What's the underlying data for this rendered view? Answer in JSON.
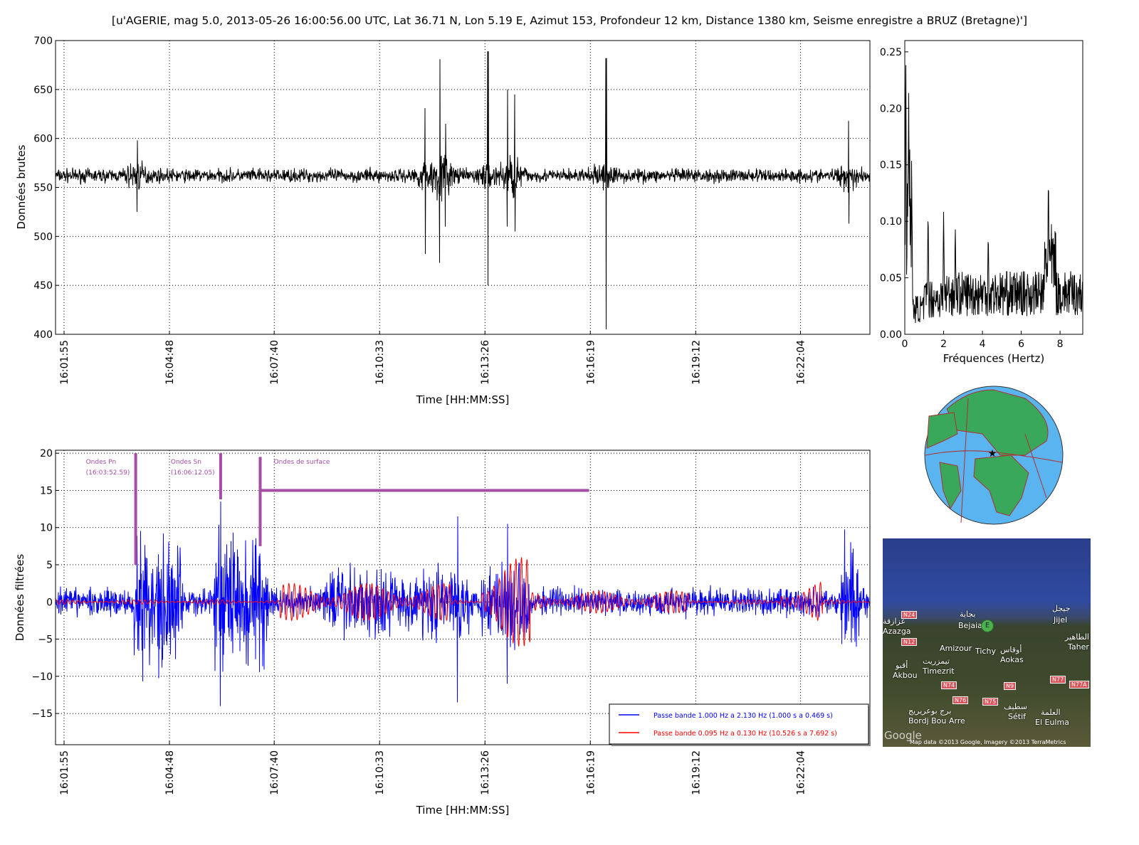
{
  "title": "[u'AGERIE, mag 5.0, 2013-05-26 16:00:56.00 UTC, Lat 36.71 N, Lon 5.19 E, Azimut 153, Profondeur 12 km, Distance 1380 km, Seisme enregistre a BRUZ (Bretagne)']",
  "chart_data": [
    {
      "type": "line",
      "id": "raw",
      "xlabel": "Time [HH:MM:SS]",
      "ylabel": "Données brutes",
      "ylim": [
        400,
        700
      ],
      "xlim": [
        "16:01:41",
        "16:23:58"
      ],
      "xticks": [
        "16:01:55",
        "16:04:48",
        "16:07:40",
        "16:10:33",
        "16:13:26",
        "16:16:19",
        "16:19:12",
        "16:22:04"
      ],
      "yticks": [
        "400",
        "450",
        "500",
        "550",
        "600",
        "650",
        "700"
      ],
      "grid": true,
      "color": "#000000",
      "baseline": 562,
      "noise_amplitude": 10,
      "peaks": [
        {
          "time": "16:03:55",
          "max": 598,
          "min": 525
        },
        {
          "time": "16:11:48",
          "max": 631,
          "min": 482
        },
        {
          "time": "16:12:12",
          "max": 681,
          "min": 473
        },
        {
          "time": "16:12:21",
          "max": 615,
          "min": 510
        },
        {
          "time": "16:13:31",
          "max": 689,
          "min": 450
        },
        {
          "time": "16:14:03",
          "max": 650,
          "min": 510
        },
        {
          "time": "16:14:15",
          "max": 645,
          "min": 505
        },
        {
          "time": "16:16:45",
          "max": 682,
          "min": 405
        },
        {
          "time": "16:23:23",
          "max": 618,
          "min": 513
        }
      ]
    },
    {
      "type": "line",
      "id": "spectrum",
      "xlabel": "Fréquences (Hertz)",
      "ylabel": "",
      "xlim": [
        0,
        9.17
      ],
      "ylim": [
        0,
        0.26
      ],
      "xticks": [
        "0",
        "2",
        "4",
        "6",
        "8"
      ],
      "yticks": [
        "0.00",
        "0.05",
        "0.10",
        "0.15",
        "0.20",
        "0.25"
      ],
      "color": "#000000",
      "peaks": [
        {
          "f": 0.05,
          "a": 0.26
        },
        {
          "f": 0.2,
          "a": 0.22
        },
        {
          "f": 0.3,
          "a": 0.135
        },
        {
          "f": 1.2,
          "a": 0.115
        },
        {
          "f": 2.0,
          "a": 0.11
        },
        {
          "f": 2.6,
          "a": 0.1
        },
        {
          "f": 4.3,
          "a": 0.095
        },
        {
          "f": 7.4,
          "a": 0.15
        }
      ]
    },
    {
      "type": "line",
      "id": "filtered",
      "xlabel": "Time [HH:MM:SS]",
      "ylabel": "Données filtrées",
      "ylim": [
        -19.2,
        20.4
      ],
      "xlim": [
        "16:01:41",
        "16:23:58"
      ],
      "xticks": [
        "16:01:55",
        "16:04:48",
        "16:07:40",
        "16:10:33",
        "16:13:26",
        "16:16:19",
        "16:19:12",
        "16:22:04"
      ],
      "yticks": [
        "−15",
        "−10",
        "−5",
        "0",
        "5",
        "10",
        "15",
        "20"
      ],
      "grid": true,
      "series": [
        {
          "name": "Passe bande 1.000 Hz a 2.130 Hz (1.000 s a 0.469 s)",
          "color": "#0000ff",
          "noise_amplitude": 2,
          "bursts": [
            {
              "start": "16:03:50",
              "end": "16:05:10",
              "amp": 9
            },
            {
              "start": "16:06:00",
              "end": "16:07:30",
              "amp": 9
            },
            {
              "start": "16:09:00",
              "end": "16:13:00",
              "amp": 5
            },
            {
              "start": "16:13:20",
              "end": "16:14:40",
              "amp": 6
            },
            {
              "start": "16:23:10",
              "end": "16:23:40",
              "amp": 9
            }
          ],
          "peaks": [
            {
              "time": "16:06:12",
              "max": 13.5,
              "min": -14
            },
            {
              "time": "16:12:41",
              "max": 11.5,
              "min": -13.5
            },
            {
              "time": "16:14:03",
              "max": 10.5,
              "min": -11
            }
          ]
        },
        {
          "name": "Passe bande 0.095 Hz a 0.130 Hz (10.526 s a 7.692 s)",
          "color": "#ff0000",
          "noise_amplitude": 0.3,
          "bursts": [
            {
              "start": "16:07:50",
              "end": "16:12:30",
              "amp": 2.5
            },
            {
              "start": "16:13:20",
              "end": "16:14:40",
              "amp": 6
            },
            {
              "start": "16:14:40",
              "end": "16:19:00",
              "amp": 1.5
            },
            {
              "start": "16:21:30",
              "end": "16:22:40",
              "amp": 2.8
            }
          ]
        }
      ],
      "legend": "bottom-right",
      "annotations": [
        {
          "label": "Ondes Pn",
          "sub": "(16:03:52.59)",
          "time": "16:03:52.59",
          "y0": 5,
          "y1": 20
        },
        {
          "label": "Ondes Sn",
          "sub": "(16:06:12.05)",
          "time": "16:06:12.05",
          "y0": 13.8,
          "y1": 20
        },
        {
          "label": "Ondes de surface",
          "sub": "",
          "time": "16:07:17",
          "y0": 7.5,
          "y1": 19.5,
          "end": "16:16:17",
          "level": 15
        }
      ],
      "annotation_color": "#a64ca6"
    }
  ],
  "globe": {
    "ocean": "#5ab4f0",
    "land": "#3aa85a",
    "plates": "#b03030",
    "epicenter": "#ff0000"
  },
  "map": {
    "labels": [
      "بجاية",
      "Bejaia",
      "جيجل",
      "Jijel",
      "عزازقة",
      "Azazga",
      "Amizour",
      "Tichy",
      "أوقاس",
      "Aokas",
      "أقبو",
      "Akbou",
      "تيمزريت",
      "Timezrit",
      "سطيف",
      "Sétif",
      "العلمة",
      "El Eulma",
      "برج بوعريريج",
      "Bordj Bou Arreridj",
      "الطاهير",
      "Taher"
    ],
    "roads": [
      "N24",
      "N12",
      "N74",
      "N76",
      "N75",
      "N9",
      "N77",
      "N77A"
    ],
    "marker": "E",
    "logo": "Google",
    "credit": "Map data ©2013 Google, Imagery ©2013 TerraMetrics"
  }
}
